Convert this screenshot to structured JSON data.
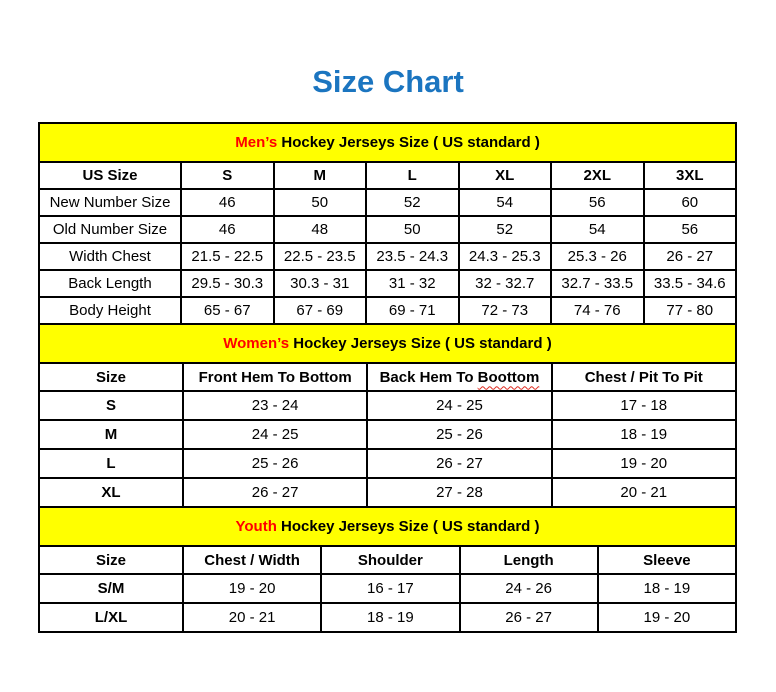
{
  "page": {
    "title": "Size Chart",
    "title_color": "#1B75C0",
    "section_header_bg": "#FFFF00",
    "section_highlight_color": "#FF0000",
    "border_color": "#000000"
  },
  "sections": {
    "mens": {
      "heading_highlight": "Men’s ",
      "heading_rest": "Hockey Jerseys Size ( US standard )",
      "columns": [
        "US Size",
        "S",
        "M",
        "L",
        "XL",
        "2XL",
        "3XL"
      ],
      "rows": [
        {
          "label": "New Number Size",
          "values": [
            "46",
            "50",
            "52",
            "54",
            "56",
            "60"
          ]
        },
        {
          "label": "Old Number Size",
          "values": [
            "46",
            "48",
            "50",
            "52",
            "54",
            "56"
          ]
        },
        {
          "label": "Width Chest",
          "values": [
            "21.5 - 22.5",
            "22.5 - 23.5",
            "23.5 - 24.3",
            "24.3 - 25.3",
            "25.3 - 26",
            "26 - 27"
          ]
        },
        {
          "label": "Back Length",
          "values": [
            "29.5 - 30.3",
            "30.3 - 31",
            "31 - 32",
            "32 - 32.7",
            "32.7 - 33.5",
            "33.5 - 34.6"
          ]
        },
        {
          "label": "Body Height",
          "values": [
            "65 - 67",
            "67 - 69",
            "69 - 71",
            "72 - 73",
            "74 - 76",
            "77 - 80"
          ]
        }
      ]
    },
    "womens": {
      "heading_highlight": "Women’s ",
      "heading_rest": "Hockey Jerseys Size ( US standard )",
      "columns": [
        "Size",
        "Front Hem To Bottom",
        "Back Hem To ",
        "Chest / Pit To Pit"
      ],
      "misspelled_word": "Boottom",
      "rows": [
        {
          "label": "S",
          "values": [
            "23 - 24",
            "24 - 25",
            "17 - 18"
          ]
        },
        {
          "label": "M",
          "values": [
            "24 - 25",
            "25 - 26",
            "18 - 19"
          ]
        },
        {
          "label": "L",
          "values": [
            "25 - 26",
            "26 - 27",
            "19 - 20"
          ]
        },
        {
          "label": "XL",
          "values": [
            "26 - 27",
            "27 - 28",
            "20 - 21"
          ]
        }
      ]
    },
    "youth": {
      "heading_highlight": "Youth ",
      "heading_rest": "Hockey Jerseys Size ( US standard )",
      "columns": [
        "Size",
        "Chest / Width",
        "Shoulder",
        "Length",
        "Sleeve"
      ],
      "rows": [
        {
          "label": "S/M",
          "values": [
            "19 - 20",
            "16 - 17",
            "24 - 26",
            "18 - 19"
          ]
        },
        {
          "label": "L/XL",
          "values": [
            "20 - 21",
            "18 - 19",
            "26 - 27",
            "19 - 20"
          ]
        }
      ]
    }
  }
}
